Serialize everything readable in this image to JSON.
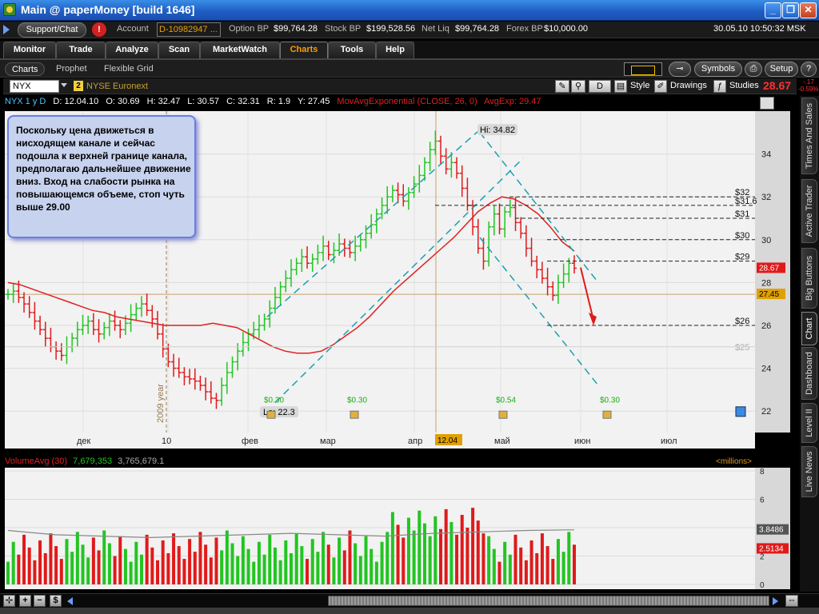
{
  "window": {
    "title": "Main @ paperMoney [build 1646]"
  },
  "account_bar": {
    "support_label": "Support/Chat",
    "alert_symbol": "!",
    "account_label": "Account",
    "account_value": "D-10982947 ...",
    "items": [
      {
        "label": "Option BP",
        "value": "$99,764.28"
      },
      {
        "label": "Stock BP",
        "value": "$199,528.56"
      },
      {
        "label": "Net Liq",
        "value": "$99,764.28"
      },
      {
        "label": "Forex BP",
        "value": "$10,000.00"
      }
    ],
    "datetime": "30.05.10 10:50:32 MSK"
  },
  "main_tabs": [
    "Monitor",
    "Trade",
    "Analyze",
    "Scan",
    "MarketWatch",
    "Charts",
    "Tools",
    "Help"
  ],
  "active_tab": "Charts",
  "sub_tabs": [
    "Charts",
    "Prophet",
    "Flexible Grid"
  ],
  "sub_buttons": {
    "symbols": "Symbols",
    "setup": "Setup"
  },
  "chart_toolbar": {
    "symbol": "NYX",
    "badge": "2",
    "exchange": "NYSE Euronext",
    "period_btn": "D",
    "style_btn": "Style",
    "drawings_btn": "Drawings",
    "studies_btn": "Studies",
    "last_price": "28.67",
    "change": "-.17",
    "change_pct": "-0.59%"
  },
  "study_row": {
    "symbol_period": "NYX 1 y D",
    "date": "D: 12.04.10",
    "open": "O: 30.69",
    "high": "H: 32.47",
    "low": "L: 30.57",
    "close": "C: 32.31",
    "range": "R: 1.9",
    "y": "Y: 27.45",
    "study": "MovAvgExponential (CLOSE, 26, 0)",
    "study_value": "AvgExp: 29.47"
  },
  "note": "Поскольку цена движеться в нисходящем канале и сейчас подошла к верхней границе канала, предполагаю дальнейшее движение вниз. Вход на слабости рынка на повышающемся объеме, стоп чуть выше 29.00",
  "labels": {
    "hi": "Hi: 34.82",
    "lo": "Lo: 22.3",
    "year_marker": "2009 year",
    "cursor_date": "12.04",
    "dividends": [
      "$0.30",
      "$0.30",
      "$0.54",
      "$0.30"
    ],
    "levels": [
      "$32",
      "$31.6",
      "$31",
      "$30",
      "$29",
      "$26",
      "$25"
    ]
  },
  "price_axis": {
    "ticks": [
      "34",
      "32",
      "30",
      "28",
      "26",
      "24",
      "22"
    ],
    "last_box": "28.67",
    "cursor_box": "27.45"
  },
  "time_axis": [
    "дек",
    "10",
    "фев",
    "мар",
    "апр",
    "май",
    "июн",
    "июл"
  ],
  "volume_row": {
    "label": "VolumeAvg (30)",
    "v1": "7,679,353",
    "v2": "3,765,679.1",
    "units": "<millions>"
  },
  "volume_axis": {
    "ticks": [
      "8",
      "6",
      "4",
      "2",
      "0"
    ],
    "avg_box": "3.8486",
    "last_box": "2.5134"
  },
  "right_tabs": [
    "Times And Sales",
    "Active Trader",
    "Big Buttons",
    "Chart",
    "Dashboard",
    "Level II",
    "Live News"
  ],
  "active_right_tab": "Chart",
  "colors": {
    "up": "#22c522",
    "down": "#e01a1a",
    "ema": "#e02020",
    "channel": "#1aa0b0",
    "accent": "#ff9a00"
  },
  "chart_data": {
    "type": "ohlc",
    "title": "NYX 1 y D",
    "ylim": [
      21,
      36
    ],
    "price_series": [
      27.45,
      27.6,
      27.3,
      27.0,
      26.6,
      26.2,
      25.8,
      25.4,
      25.0,
      24.8,
      24.6,
      25.0,
      25.4,
      25.8,
      26.0,
      26.2,
      25.8,
      25.6,
      25.9,
      26.2,
      26.0,
      25.8,
      26.1,
      26.5,
      26.8,
      27.0,
      26.7,
      26.3,
      25.6,
      24.9,
      24.3,
      24.0,
      23.8,
      23.6,
      23.5,
      23.4,
      23.2,
      22.9,
      22.6,
      22.5,
      23.2,
      23.8,
      24.3,
      24.8,
      25.2,
      25.6,
      25.8,
      26.0,
      26.3,
      26.8,
      27.3,
      27.8,
      28.2,
      28.6,
      28.9,
      29.2,
      28.9,
      29.1,
      29.4,
      29.7,
      29.3,
      29.5,
      29.8,
      29.6,
      29.4,
      29.7,
      30.0,
      30.3,
      30.7,
      31.2,
      31.6,
      32.0,
      32.3,
      32.1,
      31.8,
      32.2,
      32.6,
      33.0,
      33.6,
      34.2,
      34.6,
      33.9,
      33.3,
      33.6,
      33.1,
      32.4,
      31.6,
      30.6,
      29.6,
      29.0,
      30.6,
      31.2,
      30.5,
      31.3,
      31.5,
      30.8,
      30.3,
      29.6,
      29.0,
      28.6,
      28.2,
      27.8,
      27.4,
      28.0,
      28.4,
      28.9,
      28.67
    ],
    "ema_series": [
      28.0,
      27.9,
      27.7,
      27.5,
      27.3,
      27.1,
      26.9,
      26.7,
      26.6,
      26.4,
      26.3,
      26.2,
      26.1,
      26.0,
      26.0,
      26.0,
      26.0,
      26.1,
      26.0,
      25.9,
      25.6,
      25.3,
      25.0,
      24.8,
      24.7,
      24.7,
      24.8,
      25.1,
      25.5,
      25.9,
      26.4,
      27.0,
      27.6,
      28.1,
      28.6,
      29.1,
      29.6,
      30.1,
      30.7,
      31.3,
      31.7,
      32.0,
      31.9,
      31.6,
      31.2,
      30.6,
      29.9,
      29.47
    ],
    "hi": 34.82,
    "lo": 22.3,
    "volume_ylim": [
      0,
      8
    ],
    "volume_avg": [
      3.8,
      3.5,
      3.4,
      3.3,
      3.4,
      3.5,
      3.6,
      3.5,
      3.4,
      3.6,
      3.7,
      3.8,
      3.8486
    ]
  }
}
